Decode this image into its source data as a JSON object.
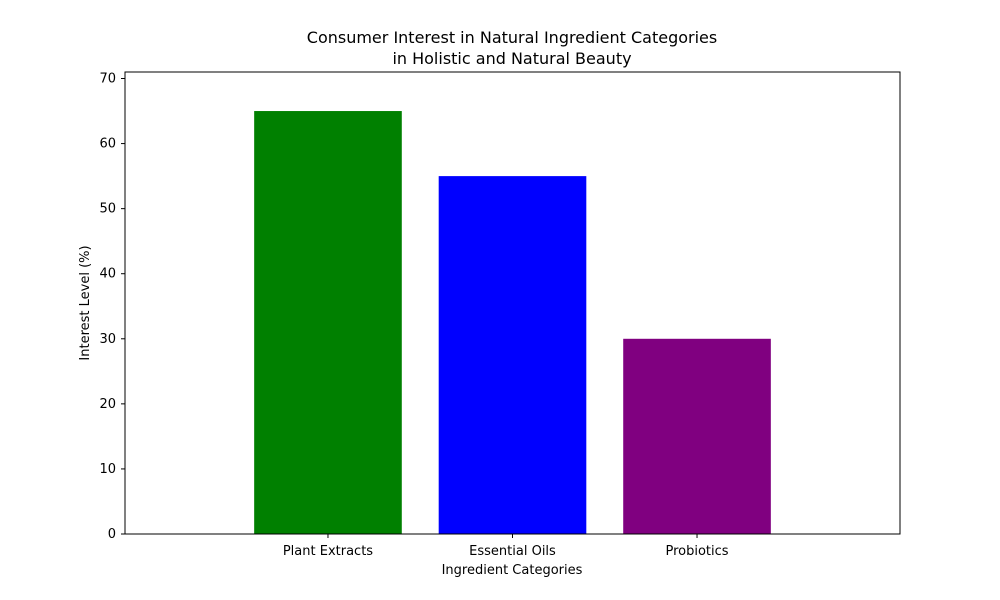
{
  "chart_data": {
    "type": "bar",
    "title_lines": [
      "Consumer Interest in Natural Ingredient Categories",
      "in Holistic and Natural Beauty"
    ],
    "xlabel": "Ingredient Categories",
    "ylabel": "Interest Level (%)",
    "categories": [
      "Plant Extracts",
      "Essential Oils",
      "Probiotics"
    ],
    "values": [
      65,
      55,
      30
    ],
    "colors": [
      "#008000",
      "#0000ff",
      "#800080"
    ],
    "ylim": [
      0,
      71
    ],
    "yticks": [
      0,
      10,
      20,
      30,
      40,
      50,
      60,
      70
    ],
    "grid": false,
    "legend": null
  }
}
